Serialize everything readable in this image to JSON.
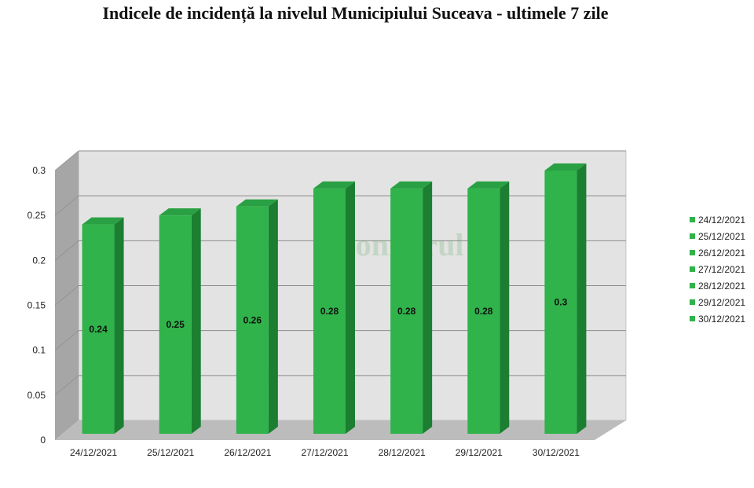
{
  "chart_data": {
    "type": "bar",
    "title": "Indicele de incidență la nivelul Municipiului Suceava - ultimele 7 zile",
    "categories": [
      "24/12/2021",
      "25/12/2021",
      "26/12/2021",
      "27/12/2021",
      "28/12/2021",
      "29/12/2021",
      "30/12/2021"
    ],
    "values": [
      0.24,
      0.25,
      0.26,
      0.28,
      0.28,
      0.28,
      0.3
    ],
    "data_labels": [
      "0.24",
      "0.25",
      "0.26",
      "0.28",
      "0.28",
      "0.28",
      "0.3"
    ],
    "y_ticks": [
      "0",
      "0.05",
      "0.1",
      "0.15",
      "0.2",
      "0.25",
      "0.3"
    ],
    "ylim": [
      0,
      0.3
    ],
    "grid": true,
    "legend_position": "right",
    "legend_entries": [
      "24/12/2021",
      "25/12/2021",
      "26/12/2021",
      "27/12/2021",
      "28/12/2021",
      "29/12/2021",
      "30/12/2021"
    ],
    "watermark": "Monitorul",
    "colors": {
      "bar_front": "#30b34a",
      "bar_side": "#1b7e31",
      "bar_top": "#29a043",
      "back_wall": "#e3e3e3",
      "side_wall": "#a6a6a6",
      "floor": "#bcbcbc",
      "gridline": "#8c8c8c",
      "legend_marker": "#30b34a"
    }
  }
}
